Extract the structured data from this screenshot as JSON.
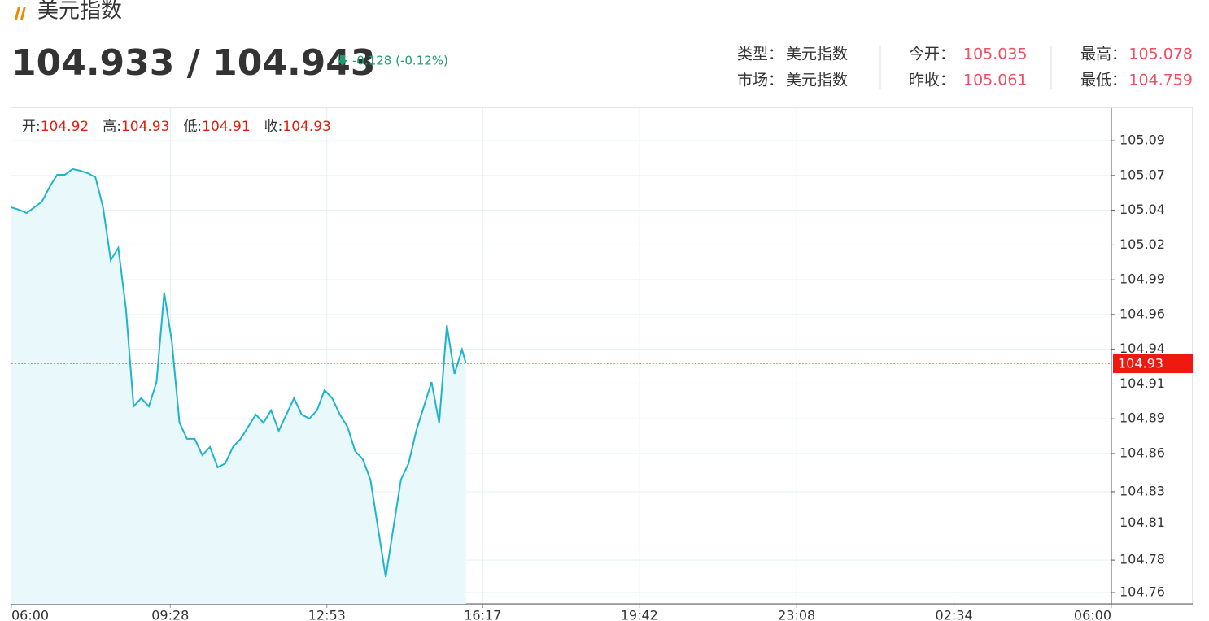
{
  "header": {
    "title": "美元指数",
    "price": "104.933 / 104.943",
    "change": "-0.128 (-0.12%)",
    "stats": [
      [
        {
          "label": "类型：",
          "value": "美元指数"
        },
        {
          "label": "今开：",
          "value": "105.035"
        },
        {
          "label": "最高：",
          "value": "105.078"
        }
      ],
      [
        {
          "label": "市场：",
          "value": "美元指数"
        },
        {
          "label": "昨收：",
          "value": "105.061"
        },
        {
          "label": "最低：",
          "value": "104.759"
        }
      ]
    ]
  },
  "ohlc": [
    {
      "label": "开:",
      "value": "104.92"
    },
    {
      "label": "高:",
      "value": "104.93"
    },
    {
      "label": "低:",
      "value": "104.91"
    },
    {
      "label": "收:",
      "value": "104.93"
    }
  ],
  "chart_data": {
    "type": "area",
    "color": "#1fb4cc",
    "area_color": "#e9f8fa",
    "grid": true,
    "y_axis": "right",
    "x": [
      "06:00",
      "06:10",
      "06:20",
      "06:30",
      "06:40",
      "06:50",
      "07:00",
      "07:10",
      "07:20",
      "07:30",
      "07:40",
      "07:50",
      "08:00",
      "08:10",
      "08:20",
      "08:30",
      "08:40",
      "08:50",
      "09:00",
      "09:10",
      "09:20",
      "09:30",
      "09:40",
      "09:50",
      "10:00",
      "10:10",
      "10:20",
      "10:30",
      "10:40",
      "10:50",
      "11:00",
      "11:10",
      "11:20",
      "11:30",
      "11:40",
      "11:50",
      "12:00",
      "12:10",
      "12:20",
      "12:30",
      "12:40",
      "12:50",
      "13:00",
      "13:10",
      "13:20",
      "13:30",
      "13:40",
      "13:50",
      "14:00",
      "14:10",
      "14:20",
      "14:30",
      "14:40",
      "14:50",
      "15:00",
      "15:10",
      "15:20",
      "15:30",
      "15:40",
      "15:50",
      "15:55"
    ],
    "values": [
      105.0427,
      105.0409,
      105.0386,
      105.0427,
      105.0469,
      105.0576,
      105.0665,
      105.0665,
      105.0707,
      105.0695,
      105.0677,
      105.0647,
      105.0427,
      105.0041,
      105.0131,
      104.9685,
      104.8972,
      104.9032,
      104.8972,
      104.915,
      104.9804,
      104.9447,
      104.8853,
      104.8735,
      104.8735,
      104.8616,
      104.8675,
      104.8527,
      104.8556,
      104.8675,
      104.8735,
      104.8824,
      104.8913,
      104.8853,
      104.8943,
      104.8794,
      104.8913,
      104.9032,
      104.8913,
      104.8883,
      104.8943,
      104.9091,
      104.9032,
      104.8913,
      104.8824,
      104.8646,
      104.8586,
      104.8438,
      104.8081,
      104.7725,
      104.8081,
      104.8438,
      104.8556,
      104.8794,
      104.8972,
      104.915,
      104.8853,
      104.9566,
      104.921,
      104.9388,
      104.9287
    ],
    "xlim": [
      "06:00",
      "06:00"
    ],
    "xticks": [
      "06:00",
      "09:28",
      "12:53",
      "16:17",
      "19:42",
      "23:08",
      "02:34",
      "06:00"
    ],
    "ylim": [
      104.7529,
      105.1152
    ],
    "yticks": [
      {
        "value": 104.7612,
        "label": "104.76"
      },
      {
        "value": 104.7849,
        "label": "104.78"
      },
      {
        "value": 104.812,
        "label": "104.81"
      },
      {
        "value": 104.8349,
        "label": "104.83"
      },
      {
        "value": 104.8628,
        "label": "104.86"
      },
      {
        "value": 104.8882,
        "label": "104.89"
      },
      {
        "value": 104.9136,
        "label": "104.91"
      },
      {
        "value": 104.939,
        "label": "104.94"
      },
      {
        "value": 104.9644,
        "label": "104.96"
      },
      {
        "value": 104.9898,
        "label": "104.99"
      },
      {
        "value": 105.0152,
        "label": "105.02"
      },
      {
        "value": 105.0406,
        "label": "105.04"
      },
      {
        "value": 105.066,
        "label": "105.07"
      },
      {
        "value": 105.0914,
        "label": "105.09"
      }
    ],
    "price_line": {
      "value": 104.9287,
      "label": "104.93",
      "color": "#f0190f"
    }
  }
}
